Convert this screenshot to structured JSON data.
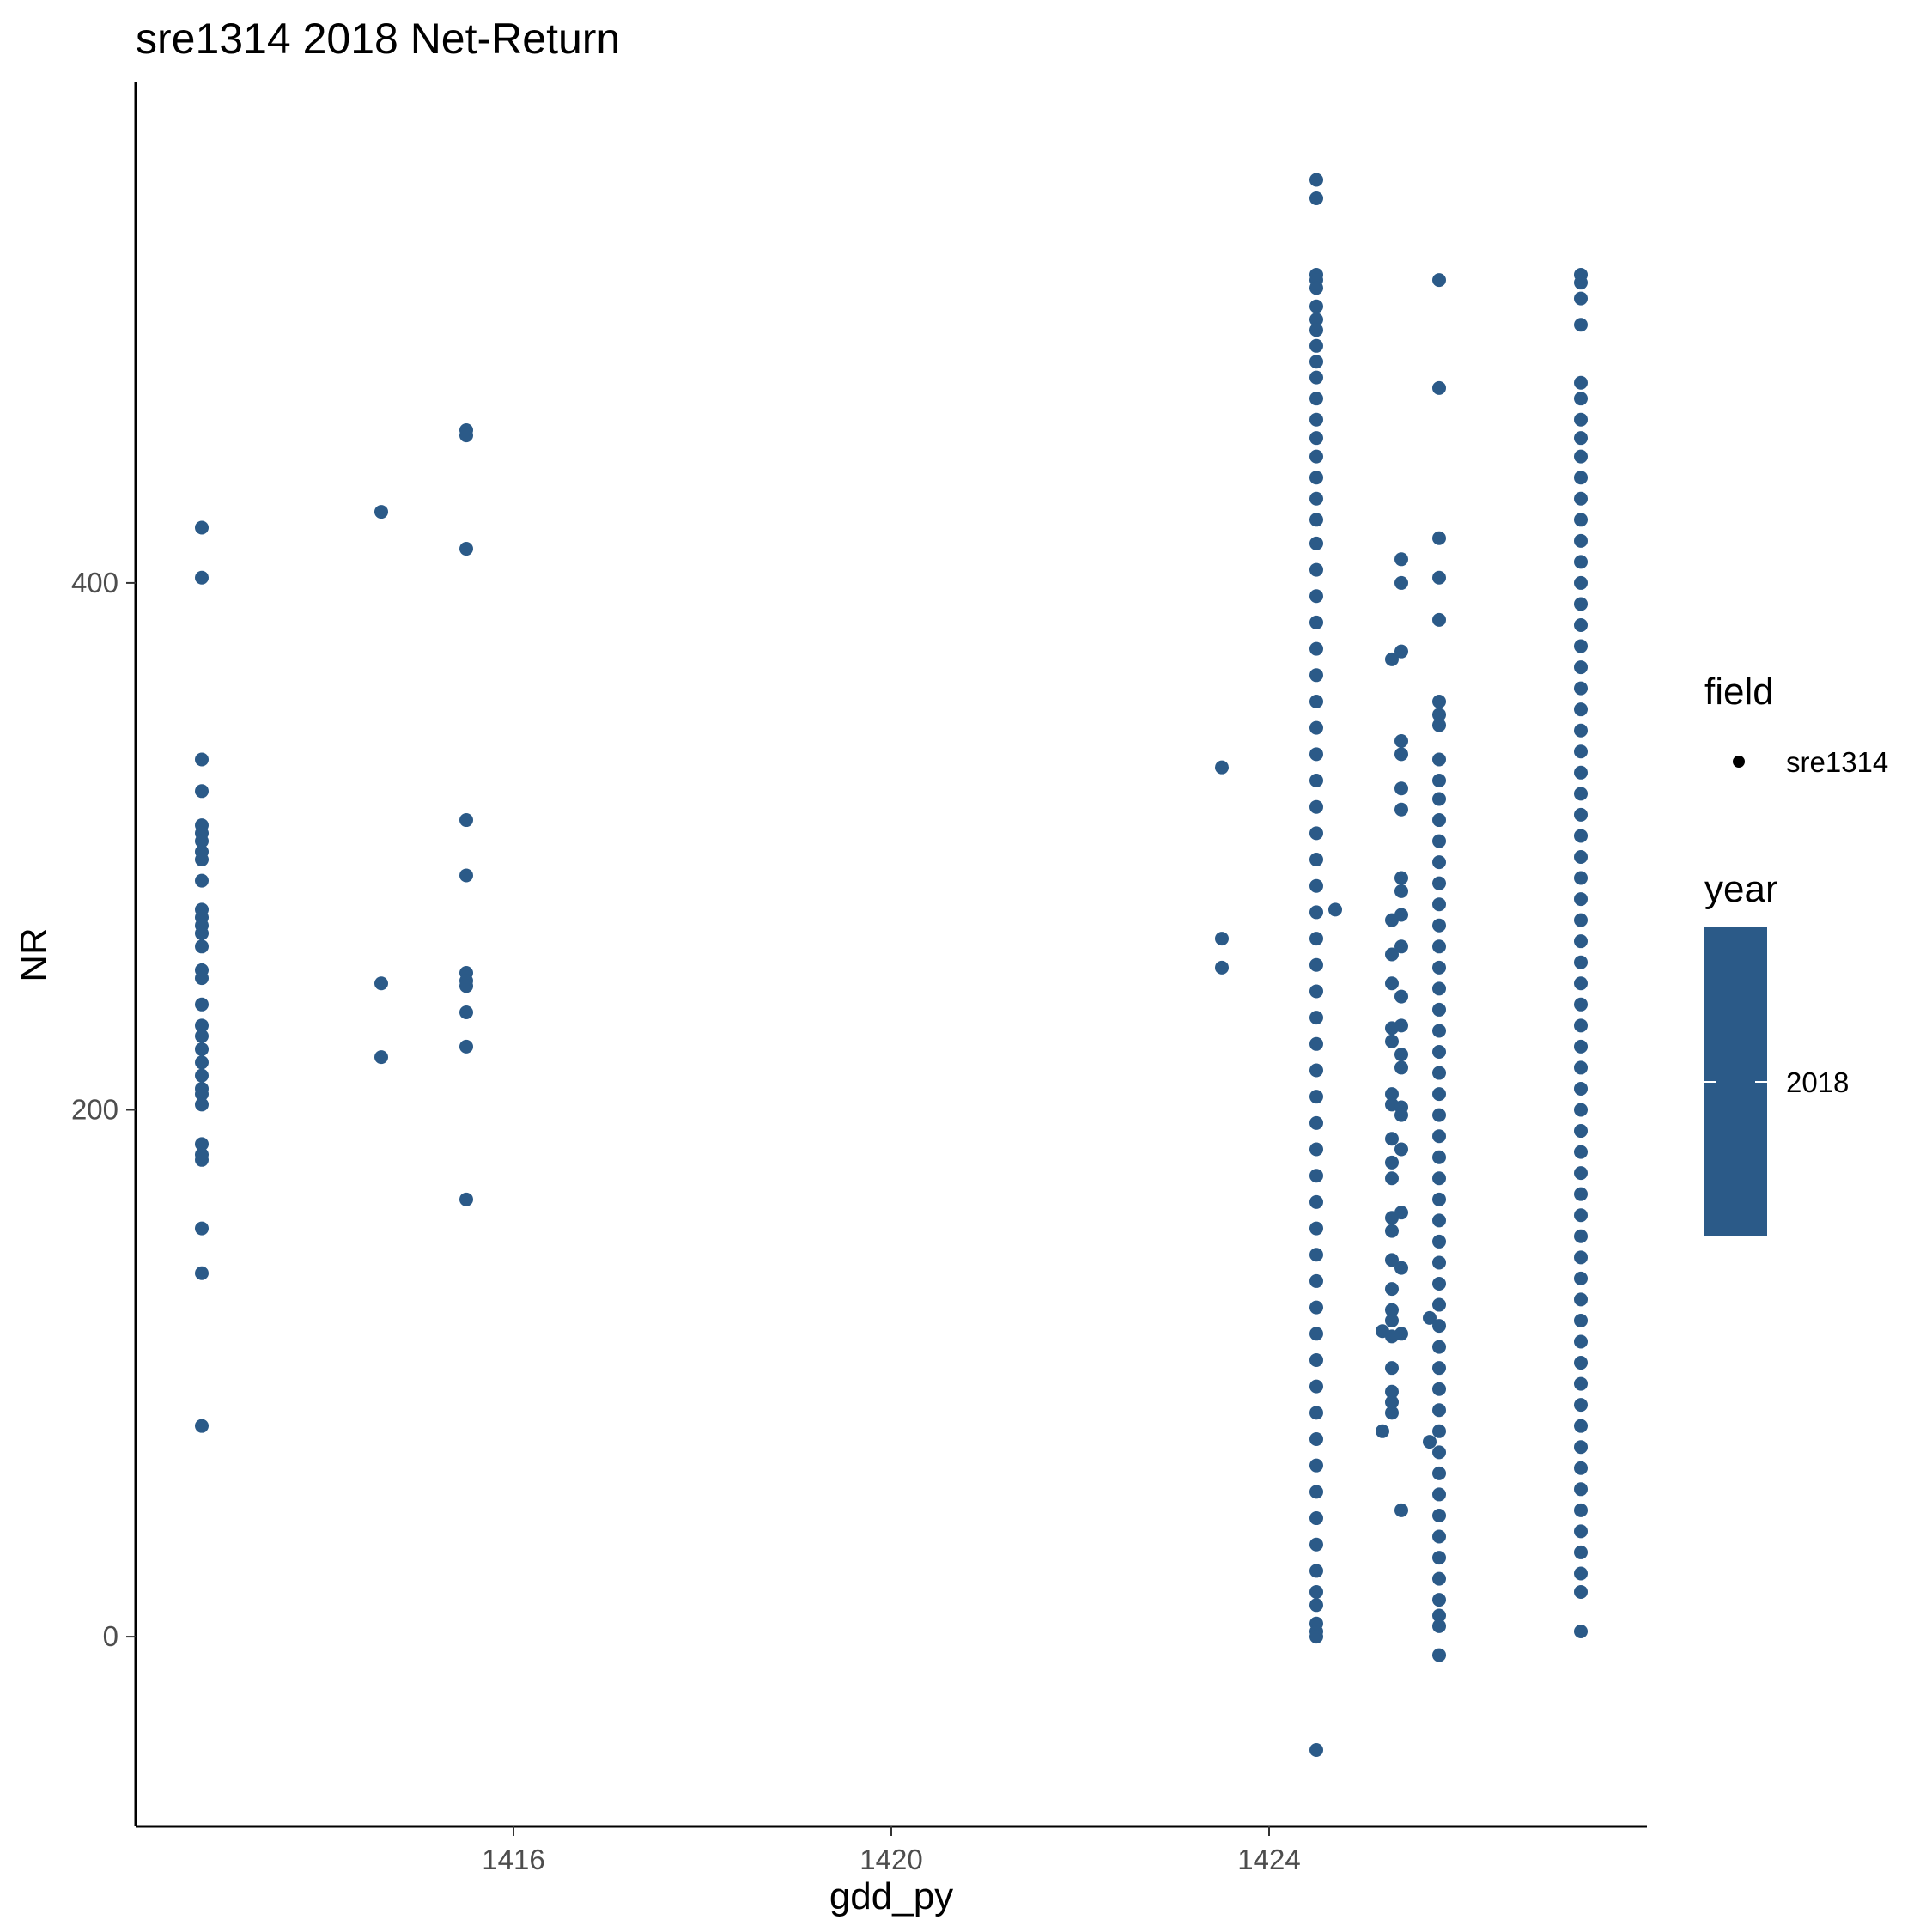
{
  "chart_data": {
    "type": "scatter",
    "title": "sre1314 2018 Net-Return",
    "xlabel": "gdd_py",
    "ylabel": "NR",
    "xlim": [
      1412.0,
      1428.0
    ],
    "ylim": [
      -72,
      590
    ],
    "x_ticks": [
      1416,
      1420,
      1424
    ],
    "y_ticks": [
      0,
      200,
      400
    ],
    "grid": false,
    "point_color": "#2b5a88",
    "legend_placement": "right",
    "legend": {
      "field_title": "field",
      "field_entries": [
        "sre1314"
      ],
      "year_title": "year",
      "year_label": "2018"
    },
    "series": [
      {
        "points": [
          [
            1412.7,
            421
          ],
          [
            1412.7,
            402
          ],
          [
            1412.7,
            333
          ],
          [
            1412.7,
            321
          ],
          [
            1412.7,
            308
          ],
          [
            1412.7,
            305
          ],
          [
            1412.7,
            302
          ],
          [
            1412.7,
            298
          ],
          [
            1412.7,
            295
          ],
          [
            1412.7,
            287
          ],
          [
            1412.7,
            276
          ],
          [
            1412.7,
            273
          ],
          [
            1412.7,
            270
          ],
          [
            1412.7,
            267
          ],
          [
            1412.7,
            262
          ],
          [
            1412.7,
            253
          ],
          [
            1412.7,
            250
          ],
          [
            1412.7,
            240
          ],
          [
            1412.7,
            232
          ],
          [
            1412.7,
            228
          ],
          [
            1412.7,
            223
          ],
          [
            1412.7,
            218
          ],
          [
            1412.7,
            213
          ],
          [
            1412.7,
            208
          ],
          [
            1412.7,
            206
          ],
          [
            1412.7,
            202
          ],
          [
            1412.7,
            187
          ],
          [
            1412.7,
            183
          ],
          [
            1412.7,
            181
          ],
          [
            1412.7,
            155
          ],
          [
            1412.7,
            138
          ],
          [
            1412.7,
            80
          ],
          [
            1414.6,
            427
          ],
          [
            1414.6,
            248
          ],
          [
            1414.6,
            220
          ],
          [
            1415.5,
            458
          ],
          [
            1415.5,
            456
          ],
          [
            1415.5,
            413
          ],
          [
            1415.5,
            310
          ],
          [
            1415.5,
            289
          ],
          [
            1415.5,
            252
          ],
          [
            1415.5,
            249
          ],
          [
            1415.5,
            247
          ],
          [
            1415.5,
            237
          ],
          [
            1415.5,
            224
          ],
          [
            1415.5,
            166
          ],
          [
            1423.5,
            330
          ],
          [
            1423.5,
            265
          ],
          [
            1423.5,
            254
          ],
          [
            1424.5,
            553
          ],
          [
            1424.5,
            546
          ],
          [
            1424.5,
            517
          ],
          [
            1424.5,
            515
          ],
          [
            1424.5,
            512
          ],
          [
            1424.5,
            505
          ],
          [
            1424.5,
            500
          ],
          [
            1424.5,
            496
          ],
          [
            1424.5,
            490
          ],
          [
            1424.5,
            484
          ],
          [
            1424.5,
            478
          ],
          [
            1424.5,
            470
          ],
          [
            1424.5,
            462
          ],
          [
            1424.5,
            455
          ],
          [
            1424.5,
            448
          ],
          [
            1424.5,
            440
          ],
          [
            1424.5,
            432
          ],
          [
            1424.5,
            424
          ],
          [
            1424.5,
            415
          ],
          [
            1424.5,
            405
          ],
          [
            1424.5,
            395
          ],
          [
            1424.5,
            385
          ],
          [
            1424.5,
            375
          ],
          [
            1424.5,
            365
          ],
          [
            1424.5,
            355
          ],
          [
            1424.5,
            345
          ],
          [
            1424.5,
            335
          ],
          [
            1424.5,
            325
          ],
          [
            1424.5,
            315
          ],
          [
            1424.5,
            305
          ],
          [
            1424.5,
            295
          ],
          [
            1424.5,
            285
          ],
          [
            1424.5,
            275
          ],
          [
            1424.5,
            265
          ],
          [
            1424.5,
            255
          ],
          [
            1424.5,
            245
          ],
          [
            1424.5,
            235
          ],
          [
            1424.5,
            225
          ],
          [
            1424.5,
            215
          ],
          [
            1424.5,
            205
          ],
          [
            1424.5,
            195
          ],
          [
            1424.5,
            185
          ],
          [
            1424.5,
            175
          ],
          [
            1424.5,
            165
          ],
          [
            1424.5,
            155
          ],
          [
            1424.5,
            145
          ],
          [
            1424.5,
            135
          ],
          [
            1424.5,
            125
          ],
          [
            1424.5,
            115
          ],
          [
            1424.5,
            105
          ],
          [
            1424.5,
            95
          ],
          [
            1424.5,
            85
          ],
          [
            1424.5,
            75
          ],
          [
            1424.5,
            65
          ],
          [
            1424.5,
            55
          ],
          [
            1424.5,
            45
          ],
          [
            1424.5,
            35
          ],
          [
            1424.5,
            25
          ],
          [
            1424.5,
            17
          ],
          [
            1424.5,
            12
          ],
          [
            1424.5,
            5
          ],
          [
            1424.5,
            2
          ],
          [
            1424.5,
            0
          ],
          [
            1424.5,
            -43
          ],
          [
            1424.7,
            276
          ],
          [
            1425.2,
            116
          ],
          [
            1425.2,
            78
          ],
          [
            1425.3,
            371
          ],
          [
            1425.3,
            272
          ],
          [
            1425.3,
            259
          ],
          [
            1425.3,
            248
          ],
          [
            1425.3,
            231
          ],
          [
            1425.3,
            226
          ],
          [
            1425.3,
            206
          ],
          [
            1425.3,
            202
          ],
          [
            1425.3,
            189
          ],
          [
            1425.3,
            180
          ],
          [
            1425.3,
            174
          ],
          [
            1425.3,
            159
          ],
          [
            1425.3,
            154
          ],
          [
            1425.3,
            143
          ],
          [
            1425.3,
            132
          ],
          [
            1425.3,
            124
          ],
          [
            1425.3,
            120
          ],
          [
            1425.3,
            114
          ],
          [
            1425.3,
            102
          ],
          [
            1425.3,
            93
          ],
          [
            1425.3,
            89
          ],
          [
            1425.3,
            85
          ],
          [
            1425.4,
            409
          ],
          [
            1425.4,
            400
          ],
          [
            1425.4,
            374
          ],
          [
            1425.4,
            340
          ],
          [
            1425.4,
            335
          ],
          [
            1425.4,
            322
          ],
          [
            1425.4,
            314
          ],
          [
            1425.4,
            288
          ],
          [
            1425.4,
            283
          ],
          [
            1425.4,
            274
          ],
          [
            1425.4,
            262
          ],
          [
            1425.4,
            243
          ],
          [
            1425.4,
            232
          ],
          [
            1425.4,
            221
          ],
          [
            1425.4,
            216
          ],
          [
            1425.4,
            201
          ],
          [
            1425.4,
            198
          ],
          [
            1425.4,
            185
          ],
          [
            1425.4,
            161
          ],
          [
            1425.4,
            140
          ],
          [
            1425.4,
            115
          ],
          [
            1425.4,
            48
          ],
          [
            1425.7,
            121
          ],
          [
            1425.7,
            74
          ],
          [
            1425.8,
            515
          ],
          [
            1425.8,
            474
          ],
          [
            1425.8,
            417
          ],
          [
            1425.8,
            402
          ],
          [
            1425.8,
            386
          ],
          [
            1425.8,
            355
          ],
          [
            1425.8,
            350
          ],
          [
            1425.8,
            346
          ],
          [
            1425.8,
            333
          ],
          [
            1425.8,
            325
          ],
          [
            1425.8,
            318
          ],
          [
            1425.8,
            310
          ],
          [
            1425.8,
            302
          ],
          [
            1425.8,
            294
          ],
          [
            1425.8,
            286
          ],
          [
            1425.8,
            278
          ],
          [
            1425.8,
            270
          ],
          [
            1425.8,
            262
          ],
          [
            1425.8,
            254
          ],
          [
            1425.8,
            246
          ],
          [
            1425.8,
            238
          ],
          [
            1425.8,
            230
          ],
          [
            1425.8,
            222
          ],
          [
            1425.8,
            214
          ],
          [
            1425.8,
            206
          ],
          [
            1425.8,
            198
          ],
          [
            1425.8,
            190
          ],
          [
            1425.8,
            182
          ],
          [
            1425.8,
            174
          ],
          [
            1425.8,
            166
          ],
          [
            1425.8,
            158
          ],
          [
            1425.8,
            150
          ],
          [
            1425.8,
            142
          ],
          [
            1425.8,
            134
          ],
          [
            1425.8,
            126
          ],
          [
            1425.8,
            118
          ],
          [
            1425.8,
            110
          ],
          [
            1425.8,
            102
          ],
          [
            1425.8,
            94
          ],
          [
            1425.8,
            86
          ],
          [
            1425.8,
            78
          ],
          [
            1425.8,
            70
          ],
          [
            1425.8,
            62
          ],
          [
            1425.8,
            54
          ],
          [
            1425.8,
            46
          ],
          [
            1425.8,
            38
          ],
          [
            1425.8,
            30
          ],
          [
            1425.8,
            22
          ],
          [
            1425.8,
            14
          ],
          [
            1425.8,
            8
          ],
          [
            1425.8,
            4
          ],
          [
            1425.8,
            -7
          ],
          [
            1427.3,
            517
          ],
          [
            1427.3,
            514
          ],
          [
            1427.3,
            508
          ],
          [
            1427.3,
            498
          ],
          [
            1427.3,
            476
          ],
          [
            1427.3,
            470
          ],
          [
            1427.3,
            462
          ],
          [
            1427.3,
            455
          ],
          [
            1427.3,
            448
          ],
          [
            1427.3,
            440
          ],
          [
            1427.3,
            432
          ],
          [
            1427.3,
            424
          ],
          [
            1427.3,
            416
          ],
          [
            1427.3,
            408
          ],
          [
            1427.3,
            400
          ],
          [
            1427.3,
            392
          ],
          [
            1427.3,
            384
          ],
          [
            1427.3,
            376
          ],
          [
            1427.3,
            368
          ],
          [
            1427.3,
            360
          ],
          [
            1427.3,
            352
          ],
          [
            1427.3,
            344
          ],
          [
            1427.3,
            336
          ],
          [
            1427.3,
            328
          ],
          [
            1427.3,
            320
          ],
          [
            1427.3,
            312
          ],
          [
            1427.3,
            304
          ],
          [
            1427.3,
            296
          ],
          [
            1427.3,
            288
          ],
          [
            1427.3,
            280
          ],
          [
            1427.3,
            272
          ],
          [
            1427.3,
            264
          ],
          [
            1427.3,
            256
          ],
          [
            1427.3,
            248
          ],
          [
            1427.3,
            240
          ],
          [
            1427.3,
            232
          ],
          [
            1427.3,
            224
          ],
          [
            1427.3,
            216
          ],
          [
            1427.3,
            208
          ],
          [
            1427.3,
            200
          ],
          [
            1427.3,
            192
          ],
          [
            1427.3,
            184
          ],
          [
            1427.3,
            176
          ],
          [
            1427.3,
            168
          ],
          [
            1427.3,
            160
          ],
          [
            1427.3,
            152
          ],
          [
            1427.3,
            144
          ],
          [
            1427.3,
            136
          ],
          [
            1427.3,
            128
          ],
          [
            1427.3,
            120
          ],
          [
            1427.3,
            112
          ],
          [
            1427.3,
            104
          ],
          [
            1427.3,
            96
          ],
          [
            1427.3,
            88
          ],
          [
            1427.3,
            80
          ],
          [
            1427.3,
            72
          ],
          [
            1427.3,
            64
          ],
          [
            1427.3,
            56
          ],
          [
            1427.3,
            48
          ],
          [
            1427.3,
            40
          ],
          [
            1427.3,
            32
          ],
          [
            1427.3,
            24
          ],
          [
            1427.3,
            17
          ],
          [
            1427.3,
            2
          ]
        ]
      }
    ]
  }
}
